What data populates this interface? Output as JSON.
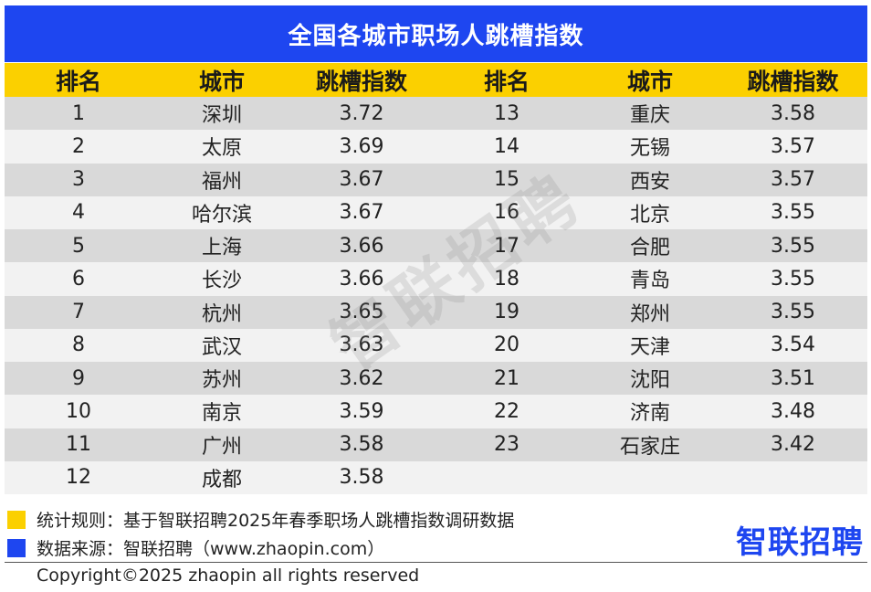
{
  "chart_data": {
    "type": "table",
    "title": "全国各城市职场人跳槽指数",
    "columns": [
      "排名",
      "城市",
      "跳槽指数",
      "排名",
      "城市",
      "跳槽指数"
    ],
    "rows": [
      {
        "left": {
          "rank": "1",
          "city": "深圳",
          "index": "3.72"
        },
        "right": {
          "rank": "13",
          "city": "重庆",
          "index": "3.58"
        }
      },
      {
        "left": {
          "rank": "2",
          "city": "太原",
          "index": "3.69"
        },
        "right": {
          "rank": "14",
          "city": "无锡",
          "index": "3.57"
        }
      },
      {
        "left": {
          "rank": "3",
          "city": "福州",
          "index": "3.67"
        },
        "right": {
          "rank": "15",
          "city": "西安",
          "index": "3.57"
        }
      },
      {
        "left": {
          "rank": "4",
          "city": "哈尔滨",
          "index": "3.67"
        },
        "right": {
          "rank": "16",
          "city": "北京",
          "index": "3.55"
        }
      },
      {
        "left": {
          "rank": "5",
          "city": "上海",
          "index": "3.66"
        },
        "right": {
          "rank": "17",
          "city": "合肥",
          "index": "3.55"
        }
      },
      {
        "left": {
          "rank": "6",
          "city": "长沙",
          "index": "3.66"
        },
        "right": {
          "rank": "18",
          "city": "青岛",
          "index": "3.55"
        }
      },
      {
        "left": {
          "rank": "7",
          "city": "杭州",
          "index": "3.65"
        },
        "right": {
          "rank": "19",
          "city": "郑州",
          "index": "3.55"
        }
      },
      {
        "left": {
          "rank": "8",
          "city": "武汉",
          "index": "3.63"
        },
        "right": {
          "rank": "20",
          "city": "天津",
          "index": "3.54"
        }
      },
      {
        "left": {
          "rank": "9",
          "city": "苏州",
          "index": "3.62"
        },
        "right": {
          "rank": "21",
          "city": "沈阳",
          "index": "3.51"
        }
      },
      {
        "left": {
          "rank": "10",
          "city": "南京",
          "index": "3.59"
        },
        "right": {
          "rank": "22",
          "city": "济南",
          "index": "3.48"
        }
      },
      {
        "left": {
          "rank": "11",
          "city": "广州",
          "index": "3.58"
        },
        "right": {
          "rank": "23",
          "city": "石家庄",
          "index": "3.42"
        }
      },
      {
        "left": {
          "rank": "12",
          "city": "成都",
          "index": "3.58"
        },
        "right": {
          "rank": "",
          "city": "",
          "index": ""
        }
      }
    ]
  },
  "watermark": "智联招聘",
  "legend": [
    {
      "color": "#fbd000",
      "text": "统计规则：基于智联招聘2025年春季职场人跳槽指数调研数据"
    },
    {
      "color": "#1e46f0",
      "text": "数据来源：智联招聘（www.zhaopin.com）"
    }
  ],
  "logo": "智联招聘",
  "copyright": "Copyright©2025 zhaopin all rights reserved",
  "colors": {
    "title_bg": "#1e46f0",
    "header_bg": "#fbd000",
    "row_odd": "#d9d9d9",
    "row_even": "#f2f2f2"
  }
}
